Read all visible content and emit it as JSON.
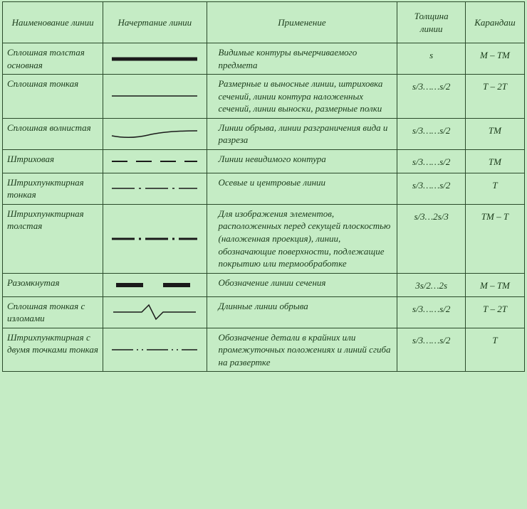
{
  "colors": {
    "background": "#c5ecc5",
    "border": "#2a4a2a",
    "text": "#1a3a1a",
    "line": "#1a1a1a"
  },
  "table": {
    "headers": {
      "name": "Наименование линии",
      "style": "Начертание линии",
      "apply": "Применение",
      "thick": "Толщина линии",
      "pencil": "Карандаш"
    },
    "rows": [
      {
        "name": "Сплошная толстая основная",
        "apply": "Видимые контуры вычерчиваемого предмета",
        "thick": "s",
        "pencil": "М – ТМ",
        "line": {
          "type": "solid",
          "weight": 5
        }
      },
      {
        "name": "Сплошная тонкая",
        "apply": "Размерные и выносные линии, штриховка сечений, линии контура наложенных сечений, линии выноски, размерные полки",
        "thick": "s/3……s/2",
        "pencil": "Т – 2Т",
        "line": {
          "type": "solid",
          "weight": 1.5
        }
      },
      {
        "name": "Сплошная волнистая",
        "apply": "Линии обрыва, линии разграничения вида и разреза",
        "thick": "s/3……s/2",
        "pencil": "ТМ",
        "line": {
          "type": "wavy",
          "weight": 1.5
        }
      },
      {
        "name": "Штриховая",
        "apply": "Линии невидимого контура",
        "thick": "s/3……s/2",
        "pencil": "ТМ",
        "line": {
          "type": "dashed",
          "weight": 2
        }
      },
      {
        "name": "Штрихпунктирная тонкая",
        "apply": "Осевые и центровые линии",
        "thick": "s/3……s/2",
        "pencil": "Т",
        "line": {
          "type": "dashdot",
          "weight": 1.5
        }
      },
      {
        "name": "Штрихпунктирная толстая",
        "apply": "Для изображения элементов, расположенных перед секущей плоскостью (наложенная проекция), линии, обозначающие поверхности, подлежащие покрытию или термообработке",
        "thick": "s/3…2s/3",
        "pencil": "ТМ – Т",
        "line": {
          "type": "dashdot",
          "weight": 3
        }
      },
      {
        "name": "Разомкнутая",
        "apply": "Обозначение линии сечения",
        "thick": "3s/2…2s",
        "pencil": "М – ТМ",
        "line": {
          "type": "open",
          "weight": 6
        }
      },
      {
        "name": "Сплошная тонкая с изломами",
        "apply": "Длинные линии обрыва",
        "thick": "s/3……s/2",
        "pencil": "Т – 2Т",
        "line": {
          "type": "zigzag",
          "weight": 1.5
        }
      },
      {
        "name": "Штрихпунктирная с двумя точками тонкая",
        "apply": "Обозначение детали в крайних или промежуточных положениях и линий сгиба на развертке",
        "thick": "s/3……s/2",
        "pencil": "Т",
        "line": {
          "type": "dash2dot",
          "weight": 1.5
        }
      }
    ]
  }
}
